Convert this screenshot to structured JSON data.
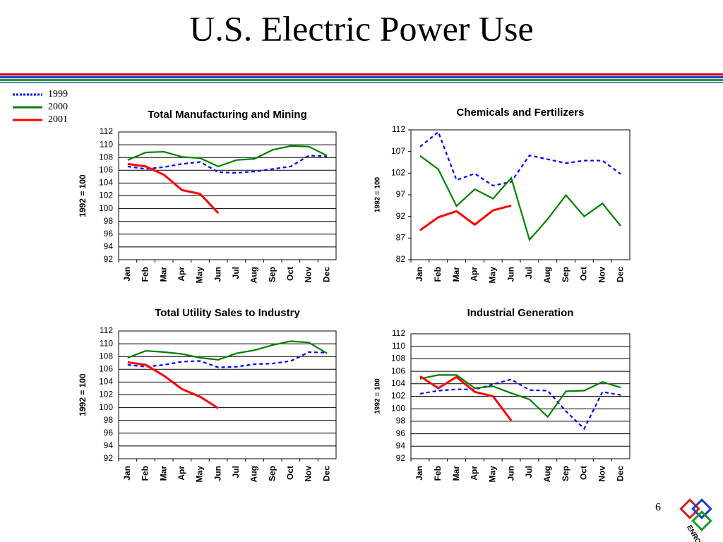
{
  "title": "U.S. Electric Power Use",
  "page_number": "6",
  "logo_text": "ENRON",
  "chart_data": [
    {
      "type": "line",
      "title": "Total Manufacturing and Mining",
      "ylabel": "1992 = 100",
      "categories": [
        "Jan",
        "Feb",
        "Mar",
        "Apr",
        "May",
        "Jun",
        "Jul",
        "Aug",
        "Sep",
        "Oct",
        "Nov",
        "Dec"
      ],
      "ylim": [
        92,
        112
      ],
      "yticks": [
        92,
        94,
        96,
        98,
        100,
        102,
        104,
        106,
        108,
        110,
        112
      ],
      "grid": true,
      "series": [
        {
          "name": "1999",
          "color": "#0000ff",
          "dashed": true,
          "values": [
            106.6,
            106.2,
            106.5,
            107.0,
            107.3,
            105.7,
            105.6,
            105.8,
            106.2,
            106.6,
            108.3,
            108.2
          ]
        },
        {
          "name": "2000",
          "color": "#008000",
          "dashed": false,
          "values": [
            107.6,
            108.8,
            108.9,
            108.1,
            107.9,
            106.6,
            107.6,
            107.8,
            109.2,
            109.8,
            109.7,
            108.3
          ]
        },
        {
          "name": "2001",
          "color": "#ff0000",
          "dashed": false,
          "values": [
            107.0,
            106.6,
            105.3,
            102.9,
            102.3,
            99.3,
            null,
            null,
            null,
            null,
            null,
            null
          ]
        }
      ]
    },
    {
      "type": "line",
      "title": "Chemicals and Fertilizers",
      "ylabel": "1992 = 100",
      "categories": [
        "Jan",
        "Feb",
        "Mar",
        "Apr",
        "May",
        "Jun",
        "Jul",
        "Aug",
        "Sep",
        "Oct",
        "Nov",
        "Dec"
      ],
      "ylim": [
        82,
        112
      ],
      "yticks": [
        82,
        87,
        92,
        97,
        102,
        107,
        112
      ],
      "grid": false,
      "series": [
        {
          "name": "1999",
          "color": "#0000ff",
          "dashed": true,
          "values": [
            108.1,
            111.5,
            100.4,
            101.9,
            99.1,
            100.0,
            106.1,
            105.2,
            104.3,
            104.9,
            104.9,
            101.8
          ]
        },
        {
          "name": "2000",
          "color": "#008000",
          "dashed": false,
          "values": [
            106.0,
            102.9,
            94.4,
            98.3,
            96.1,
            100.9,
            86.6,
            91.4,
            96.9,
            92.0,
            95.0,
            89.8
          ]
        },
        {
          "name": "2001",
          "color": "#ff0000",
          "dashed": false,
          "values": [
            88.8,
            91.8,
            93.2,
            90.1,
            93.4,
            94.5,
            null,
            null,
            null,
            null,
            null,
            null
          ]
        }
      ]
    },
    {
      "type": "line",
      "title": "Total Utility Sales to Industry",
      "ylabel": "1992 = 100",
      "categories": [
        "Jan",
        "Feb",
        "Mar",
        "Apr",
        "May",
        "Jun",
        "Jul",
        "Aug",
        "Sep",
        "Oct",
        "Nov",
        "Dec"
      ],
      "ylim": [
        92,
        112
      ],
      "yticks": [
        92,
        94,
        96,
        98,
        100,
        102,
        104,
        106,
        108,
        110,
        112
      ],
      "grid": true,
      "series": [
        {
          "name": "1999",
          "color": "#0000ff",
          "dashed": true,
          "values": [
            106.7,
            106.4,
            106.7,
            107.2,
            107.3,
            106.3,
            106.4,
            106.8,
            106.9,
            107.3,
            108.7,
            108.6
          ]
        },
        {
          "name": "2000",
          "color": "#008000",
          "dashed": false,
          "values": [
            107.8,
            108.9,
            108.7,
            108.4,
            107.8,
            107.5,
            108.5,
            109.0,
            109.8,
            110.4,
            110.2,
            108.5
          ]
        },
        {
          "name": "2001",
          "color": "#ff0000",
          "dashed": false,
          "values": [
            107.1,
            106.7,
            105.0,
            102.9,
            101.7,
            99.9,
            null,
            null,
            null,
            null,
            null,
            null
          ]
        }
      ]
    },
    {
      "type": "line",
      "title": "Industrial Generation",
      "ylabel": "1992 = 100",
      "categories": [
        "Jan",
        "Feb",
        "Mar",
        "Apr",
        "May",
        "Jun",
        "Jul",
        "Aug",
        "Sep",
        "Oct",
        "Nov",
        "Dec"
      ],
      "ylim": [
        92,
        112
      ],
      "yticks": [
        92,
        94,
        96,
        98,
        100,
        102,
        104,
        106,
        108,
        110,
        112
      ],
      "grid": true,
      "series": [
        {
          "name": "1999",
          "color": "#0000ff",
          "dashed": true,
          "values": [
            102.4,
            102.9,
            103.1,
            103.1,
            103.9,
            104.7,
            103.0,
            102.9,
            99.6,
            96.8,
            102.7,
            102.2
          ]
        },
        {
          "name": "2000",
          "color": "#008000",
          "dashed": false,
          "values": [
            104.8,
            105.4,
            105.4,
            103.3,
            103.6,
            102.5,
            101.5,
            98.7,
            102.8,
            102.9,
            104.3,
            103.4
          ]
        },
        {
          "name": "2001",
          "color": "#ff0000",
          "dashed": false,
          "values": [
            105.2,
            103.3,
            105.1,
            102.7,
            102.0,
            98.1,
            null,
            null,
            null,
            null,
            null,
            null
          ]
        }
      ]
    }
  ]
}
